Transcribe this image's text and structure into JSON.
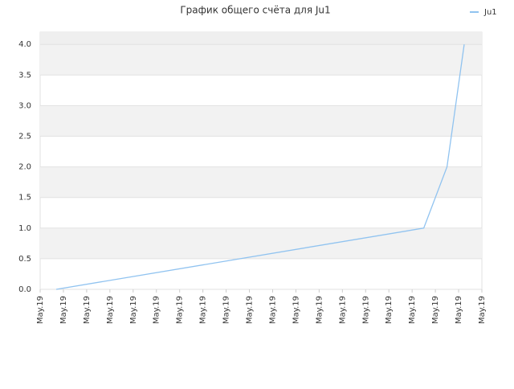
{
  "chart_data": {
    "type": "line",
    "title": "График общего счёта для Ju1",
    "x": [
      0.69,
      16.5,
      17.5,
      18.24
    ],
    "series": [
      {
        "name": "Ju1",
        "color": "#90c3f0",
        "values": [
          0,
          1,
          2,
          4
        ]
      }
    ],
    "xlim": [
      0,
      19
    ],
    "xticks": [
      {
        "value": 0,
        "label": "May.19"
      },
      {
        "value": 1,
        "label": "May.19"
      },
      {
        "value": 2,
        "label": "May.19"
      },
      {
        "value": 3,
        "label": "May.19"
      },
      {
        "value": 4,
        "label": "May.19"
      },
      {
        "value": 5,
        "label": "May.19"
      },
      {
        "value": 6,
        "label": "May.19"
      },
      {
        "value": 7,
        "label": "May.19"
      },
      {
        "value": 8,
        "label": "May.19"
      },
      {
        "value": 9,
        "label": "May.19"
      },
      {
        "value": 10,
        "label": "May.19"
      },
      {
        "value": 11,
        "label": "May.19"
      },
      {
        "value": 12,
        "label": "May.19"
      },
      {
        "value": 13,
        "label": "May.19"
      },
      {
        "value": 14,
        "label": "May.19"
      },
      {
        "value": 15,
        "label": "May.19"
      },
      {
        "value": 16,
        "label": "May.19"
      },
      {
        "value": 17,
        "label": "May.19"
      },
      {
        "value": 18,
        "label": "May.19"
      },
      {
        "value": 19,
        "label": "May.19"
      }
    ],
    "ylim": [
      0,
      4.2
    ],
    "yticks": [
      {
        "value": 0,
        "label": "0.0"
      },
      0.5,
      {
        "value": 1,
        "label": "1.0"
      },
      1.5,
      {
        "value": 2,
        "label": "2.0"
      },
      2.5,
      {
        "value": 3,
        "label": "3.0"
      },
      3.5,
      {
        "value": 4,
        "label": "4.0"
      }
    ],
    "grid": true,
    "legend": "top-right"
  }
}
